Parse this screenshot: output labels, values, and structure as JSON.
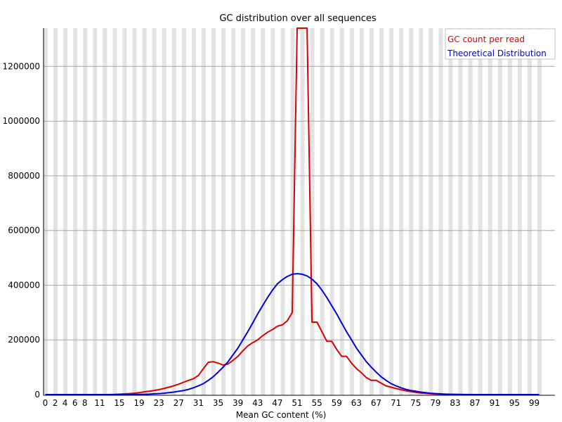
{
  "chart_data": {
    "type": "line",
    "title": "GC distribution over all sequences",
    "xlabel": "Mean GC content (%)",
    "ylabel": "",
    "xlim": [
      0,
      100
    ],
    "ylim": [
      0,
      1340000
    ],
    "yticks": [
      0,
      200000,
      400000,
      600000,
      800000,
      1000000,
      1200000
    ],
    "xticks": [
      0,
      2,
      4,
      6,
      8,
      11,
      15,
      19,
      23,
      27,
      31,
      35,
      39,
      43,
      47,
      51,
      55,
      59,
      63,
      67,
      71,
      75,
      79,
      83,
      87,
      91,
      95,
      99
    ],
    "grid": "horizontal, alternating vertical bands",
    "band_color": "#e3e3e3",
    "legend_position": "top-right",
    "series": [
      {
        "name": "GC count per read",
        "color": "#dd0000",
        "x": [
          0,
          1,
          2,
          3,
          4,
          5,
          6,
          7,
          8,
          9,
          10,
          11,
          12,
          13,
          14,
          15,
          16,
          17,
          18,
          19,
          20,
          21,
          22,
          23,
          24,
          25,
          26,
          27,
          28,
          29,
          30,
          31,
          32,
          33,
          34,
          35,
          36,
          37,
          38,
          39,
          40,
          41,
          42,
          43,
          44,
          45,
          46,
          47,
          48,
          49,
          50,
          51,
          52,
          53,
          54,
          55,
          56,
          57,
          58,
          59,
          60,
          61,
          62,
          63,
          64,
          65,
          66,
          67,
          68,
          69,
          70,
          71,
          72,
          73,
          74,
          75,
          76,
          77,
          78,
          79,
          80,
          81,
          82,
          83,
          84,
          85,
          86,
          87,
          88,
          89,
          90,
          91,
          92,
          93,
          94,
          95,
          96,
          97,
          98,
          99,
          100
        ],
        "values": [
          0,
          0,
          0,
          0,
          0,
          0,
          0,
          0,
          0,
          0,
          0,
          0,
          0,
          0,
          500,
          1500,
          2500,
          3500,
          5000,
          7000,
          10000,
          12000,
          15000,
          18000,
          22000,
          27000,
          32000,
          38000,
          45000,
          52000,
          58000,
          70000,
          95000,
          118000,
          120000,
          115000,
          108000,
          112000,
          125000,
          140000,
          160000,
          178000,
          190000,
          200000,
          215000,
          228000,
          238000,
          250000,
          255000,
          270000,
          300000,
          1340000,
          1340000,
          1340000,
          265000,
          265000,
          230000,
          195000,
          195000,
          165000,
          140000,
          140000,
          115000,
          95000,
          80000,
          62000,
          52000,
          52000,
          42000,
          32000,
          27000,
          22000,
          18000,
          14000,
          11000,
          8000,
          6000,
          4000,
          3000,
          2000,
          1500,
          1000,
          800,
          500,
          300,
          200,
          100,
          0,
          0,
          0,
          0,
          0,
          0,
          0,
          0,
          0,
          0,
          0,
          0,
          0,
          0
        ]
      },
      {
        "name": "Theoretical Distribution",
        "color": "#0000dd",
        "x": [
          0,
          1,
          2,
          3,
          4,
          5,
          6,
          7,
          8,
          9,
          10,
          11,
          12,
          13,
          14,
          15,
          16,
          17,
          18,
          19,
          20,
          21,
          22,
          23,
          24,
          25,
          26,
          27,
          28,
          29,
          30,
          31,
          32,
          33,
          34,
          35,
          36,
          37,
          38,
          39,
          40,
          41,
          42,
          43,
          44,
          45,
          46,
          47,
          48,
          49,
          50,
          51,
          52,
          53,
          54,
          55,
          56,
          57,
          58,
          59,
          60,
          61,
          62,
          63,
          64,
          65,
          66,
          67,
          68,
          69,
          70,
          71,
          72,
          73,
          74,
          75,
          76,
          77,
          78,
          79,
          80,
          81,
          82,
          83,
          84,
          85,
          86,
          87,
          88,
          89,
          90,
          91,
          92,
          93,
          94,
          95,
          96,
          97,
          98,
          99,
          100
        ],
        "values": [
          0,
          0,
          0,
          0,
          0,
          0,
          0,
          0,
          0,
          0,
          0,
          0,
          0,
          0,
          0,
          0,
          0,
          0,
          200,
          500,
          1000,
          1500,
          2500,
          3500,
          5000,
          7000,
          9000,
          12000,
          15000,
          19000,
          25000,
          32000,
          40000,
          52000,
          65000,
          82000,
          100000,
          120000,
          145000,
          170000,
          200000,
          230000,
          262000,
          295000,
          325000,
          355000,
          382000,
          405000,
          420000,
          432000,
          440000,
          442000,
          440000,
          434000,
          422000,
          405000,
          382000,
          355000,
          325000,
          295000,
          262000,
          230000,
          200000,
          170000,
          145000,
          120000,
          100000,
          82000,
          65000,
          52000,
          40000,
          32000,
          25000,
          19000,
          15000,
          12000,
          9000,
          7000,
          5000,
          3500,
          2500,
          1500,
          1000,
          500,
          200,
          0,
          0,
          0,
          0,
          0,
          0,
          0,
          0,
          0,
          0,
          0,
          0,
          0,
          0,
          0,
          0
        ]
      }
    ]
  }
}
